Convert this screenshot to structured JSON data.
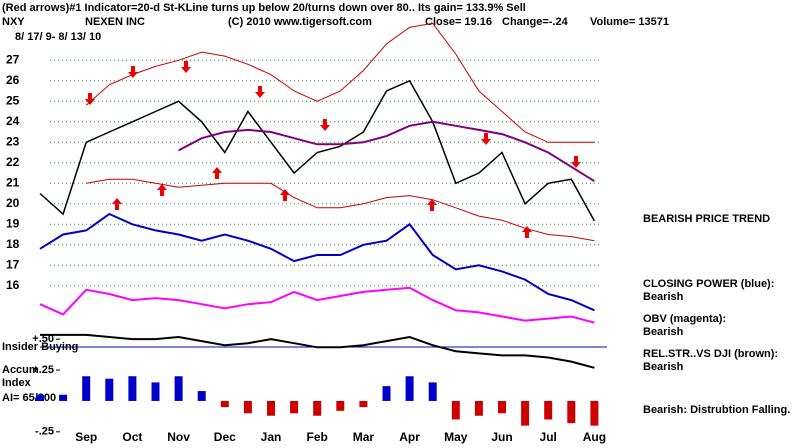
{
  "header": {
    "line1": "(Red arrows)#1 Indicator=20-d St-KLine turns up below 20/turns down over 80.. Its gain= 133.9% Sell",
    "ticker": "NXY",
    "company": "NEXEN INC",
    "copyright": "(C) 2010 www.tigersoft.com",
    "close": "Close= 19.16",
    "change": "Change=-.24",
    "volume": "Volume= 13571",
    "dates": "8/ 17/ 9- 8/ 13/ 10"
  },
  "chart_data": [
    {
      "type": "line",
      "annotation": "BEARISH PRICE TREND",
      "categories": [
        null,
        null,
        "Sep",
        null,
        "Oct",
        null,
        "Nov",
        null,
        "Dec",
        null,
        "Jan",
        null,
        "Feb",
        null,
        "Mar",
        null,
        "Apr",
        null,
        "May",
        null,
        "Jun",
        null,
        "Jul",
        null,
        "Aug"
      ],
      "ylim": [
        11.5,
        29.5
      ],
      "yticks": [
        16,
        17,
        18,
        19,
        20,
        21,
        22,
        23,
        24,
        25,
        26,
        27
      ],
      "grid": true,
      "grid_color": "#2e8b57",
      "series": [
        {
          "color": "#000000",
          "values": [
            20.5,
            19.5,
            23,
            23.5,
            24,
            24.5,
            25,
            24,
            22.5,
            24.5,
            23,
            21.5,
            22.5,
            22.8,
            23.5,
            25.5,
            26,
            24,
            21,
            21.5,
            22.5,
            20,
            21,
            21.2,
            19.16
          ]
        },
        {
          "color": "#cc0000",
          "values": [
            null,
            null,
            24.8,
            25.8,
            26.3,
            26.7,
            27,
            27.4,
            27.2,
            26.8,
            26.3,
            25.5,
            25,
            25.5,
            26.5,
            27.8,
            28.6,
            28.8,
            27.3,
            25.5,
            24.5,
            23.5,
            23,
            23,
            23
          ]
        },
        {
          "color": "#cc0000",
          "values": [
            null,
            null,
            21,
            21.2,
            21.2,
            21,
            20.8,
            20.9,
            21,
            21,
            21,
            20.3,
            19.8,
            19.8,
            20,
            20.3,
            20.4,
            20.2,
            19.8,
            19.4,
            19.2,
            18.8,
            18.5,
            18.4,
            18.2
          ]
        },
        {
          "color": "#800080",
          "values": [
            null,
            null,
            null,
            null,
            null,
            null,
            22.6,
            23.2,
            23.5,
            23.6,
            23.5,
            23.2,
            22.9,
            22.9,
            23,
            23.3,
            23.8,
            24,
            23.8,
            23.6,
            23.4,
            23,
            22.5,
            21.8,
            21.1
          ]
        },
        {
          "name": "CLOSING POWER (blue):",
          "status": "Bearish",
          "color": "#0000cc",
          "values": [
            17.8,
            18.5,
            18.7,
            19.5,
            19,
            18.7,
            18.5,
            18.2,
            18.5,
            18.2,
            17.8,
            17.2,
            17.5,
            17.5,
            18,
            18.2,
            19,
            17.5,
            16.8,
            17,
            16.7,
            16.3,
            15.6,
            15.3,
            14.8
          ]
        },
        {
          "name": "OBV (magenta):",
          "status": "Bearish",
          "color": "#ff00ff",
          "values": [
            15.1,
            14.6,
            15.8,
            15.6,
            15.3,
            15.4,
            15.3,
            15.1,
            14.9,
            15.1,
            15.2,
            15.7,
            15.3,
            15.5,
            15.7,
            15.8,
            15.9,
            15.3,
            14.8,
            14.7,
            14.5,
            14.3,
            14.4,
            14.5,
            14.2
          ]
        },
        {
          "name": "REL.STR..VS DJI (brown):",
          "status": "Bearish",
          "color": "#000000",
          "values": [
            13.6,
            13.6,
            13.6,
            13.5,
            13.4,
            13.4,
            13.5,
            13.3,
            13.1,
            13.2,
            13.4,
            13.2,
            13,
            13,
            13.1,
            13.3,
            13.5,
            13.1,
            12.8,
            12.7,
            12.6,
            12.6,
            12.5,
            12.3,
            12
          ]
        }
      ]
    },
    {
      "type": "bar",
      "annotation": "Bearish:  Distrubtion Falling.",
      "insider_label": "Insider Buying",
      "ylabel": "Accum Index",
      "ai_label": "AI= 65/200",
      "ylim": [
        -0.3,
        0.55
      ],
      "yticks": [
        {
          "value": 0.5,
          "label": "+.50"
        },
        {
          "value": 0.25,
          "label": "+.25"
        },
        {
          "value": -0.25,
          "label": "-.25"
        }
      ],
      "pos_color": "#0000cc",
      "neg_color": "#cc0000",
      "values": [
        0.05,
        0.05,
        0.2,
        0.18,
        0.2,
        0.15,
        0.2,
        0.08,
        -0.05,
        -0.1,
        -0.12,
        -0.1,
        -0.12,
        -0.08,
        -0.05,
        0.12,
        0.2,
        0.15,
        -0.15,
        -0.12,
        -0.1,
        -0.2,
        -0.15,
        -0.18,
        -0.2
      ]
    }
  ]
}
